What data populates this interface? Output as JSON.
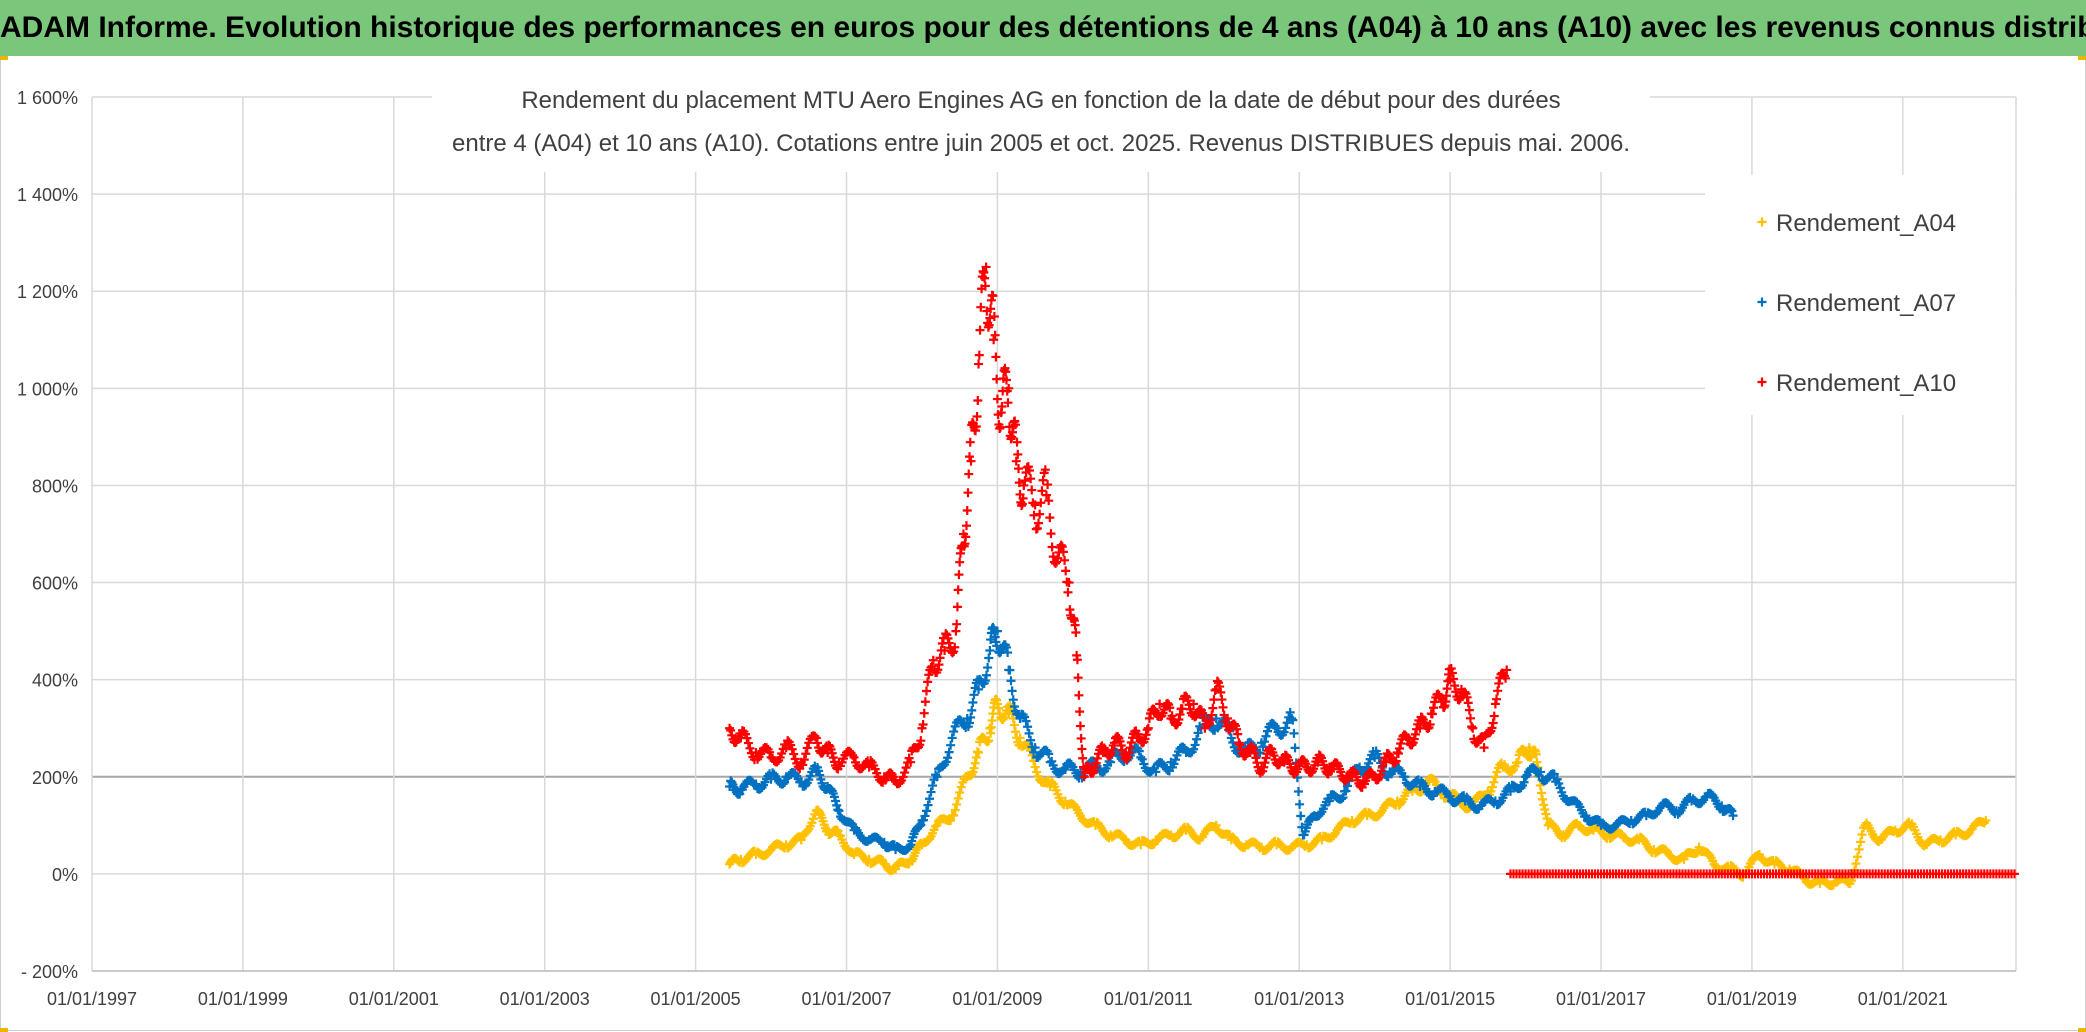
{
  "banner": {
    "title": "ADAM Informe. Evolution historique des performances en euros pour des détentions de 4 ans (A04) à 10 ans (A10) avec les revenus connus distribués"
  },
  "chart_data": {
    "type": "scatter",
    "title_line1": "Rendement du placement MTU Aero Engines AG en fonction de la date de début pour des durées",
    "title_line2": "entre 4 (A04) et 10 ans (A10). Cotations entre juin 2005 et oct. 2025. Revenus DISTRIBUES depuis mai. 2006.",
    "x_range": [
      1997.0,
      2022.5
    ],
    "ylim": [
      -200,
      1600
    ],
    "y_ticks": [
      {
        "value": -200,
        "label": "- 200%"
      },
      {
        "value": 0,
        "label": "0%"
      },
      {
        "value": 200,
        "label": "200%"
      },
      {
        "value": 400,
        "label": "400%"
      },
      {
        "value": 600,
        "label": "600%"
      },
      {
        "value": 800,
        "label": "800%"
      },
      {
        "value": 1000,
        "label": "1 000%"
      },
      {
        "value": 1200,
        "label": "1 200%"
      },
      {
        "value": 1400,
        "label": "1 400%"
      },
      {
        "value": 1600,
        "label": "1 600%"
      }
    ],
    "x_ticks": [
      {
        "value": 1997,
        "label": "01/01/1997"
      },
      {
        "value": 1999,
        "label": "01/01/1999"
      },
      {
        "value": 2001,
        "label": "01/01/2001"
      },
      {
        "value": 2003,
        "label": "01/01/2003"
      },
      {
        "value": 2005,
        "label": "01/01/2005"
      },
      {
        "value": 2007,
        "label": "01/01/2007"
      },
      {
        "value": 2009,
        "label": "01/01/2009"
      },
      {
        "value": 2011,
        "label": "01/01/2011"
      },
      {
        "value": 2013,
        "label": "01/01/2013"
      },
      {
        "value": 2015,
        "label": "01/01/2015"
      },
      {
        "value": 2017,
        "label": "01/01/2017"
      },
      {
        "value": 2019,
        "label": "01/01/2019"
      },
      {
        "value": 2021,
        "label": "01/01/2021"
      }
    ],
    "legend_position": "top-right",
    "series": [
      {
        "name": "Rendement_A04",
        "color": "#ffc000",
        "x": [
          2005.45,
          2005.6,
          2005.8,
          2006.0,
          2006.2,
          2006.4,
          2006.6,
          2006.75,
          2006.9,
          2007.1,
          2007.3,
          2007.5,
          2007.65,
          2007.85,
          2008.0,
          2008.2,
          2008.4,
          2008.6,
          2008.75,
          2008.9,
          2009.0,
          2009.15,
          2009.3,
          2009.5,
          2009.7,
          2009.9,
          2010.1,
          2010.3,
          2010.5,
          2010.7,
          2010.9,
          2011.1,
          2011.3,
          2011.5,
          2011.7,
          2011.9,
          2012.1,
          2012.3,
          2012.5,
          2012.7,
          2012.9,
          2013.1,
          2013.3,
          2013.5,
          2013.7,
          2013.9,
          2014.1,
          2014.3,
          2014.5,
          2014.7,
          2014.9,
          2015.1,
          2015.3,
          2015.5,
          2015.7,
          2015.9,
          2016.05,
          2016.15,
          2016.3,
          2016.5,
          2016.7,
          2016.9,
          2017.1,
          2017.3,
          2017.5,
          2017.7,
          2017.9,
          2018.1,
          2018.3,
          2018.5,
          2018.7,
          2018.9,
          2019.1,
          2019.3,
          2019.5,
          2019.7,
          2019.9,
          2020.1,
          2020.3,
          2020.5,
          2020.7,
          2020.9,
          2021.1,
          2021.3,
          2021.5,
          2021.7,
          2021.9,
          2022.1
        ],
        "y": [
          20,
          30,
          40,
          50,
          60,
          70,
          130,
          90,
          80,
          40,
          30,
          20,
          10,
          30,
          60,
          100,
          120,
          200,
          250,
          300,
          350,
          330,
          280,
          220,
          180,
          150,
          120,
          100,
          80,
          70,
          60,
          70,
          80,
          90,
          75,
          100,
          70,
          60,
          55,
          60,
          55,
          60,
          70,
          90,
          110,
          120,
          130,
          150,
          170,
          190,
          170,
          150,
          140,
          170,
          220,
          230,
          260,
          230,
          100,
          80,
          100,
          90,
          80,
          75,
          70,
          50,
          40,
          30,
          55,
          20,
          10,
          0,
          40,
          20,
          10,
          -10,
          -20,
          -15,
          -20,
          100,
          70,
          90,
          100,
          60,
          70,
          80,
          90,
          110
        ]
      },
      {
        "name": "Rendement_A07",
        "color": "#0070c0",
        "x": [
          2005.45,
          2005.6,
          2005.8,
          2006.0,
          2006.2,
          2006.4,
          2006.6,
          2006.75,
          2006.9,
          2007.1,
          2007.3,
          2007.5,
          2007.65,
          2007.85,
          2008.0,
          2008.2,
          2008.4,
          2008.6,
          2008.75,
          2008.9,
          2009.0,
          2009.15,
          2009.3,
          2009.5,
          2009.7,
          2009.9,
          2010.1,
          2010.3,
          2010.5,
          2010.7,
          2010.9,
          2011.1,
          2011.3,
          2011.5,
          2011.7,
          2011.9,
          2012.1,
          2012.3,
          2012.5,
          2012.7,
          2012.9,
          2013.05,
          2013.2,
          2013.4,
          2013.6,
          2013.8,
          2014.0,
          2014.2,
          2014.4,
          2014.6,
          2014.8,
          2015.0,
          2015.2,
          2015.4,
          2015.6,
          2015.8,
          2016.0,
          2016.2,
          2016.4,
          2016.6,
          2016.8,
          2017.0,
          2017.2,
          2017.4,
          2017.6,
          2017.8,
          2018.0,
          2018.2,
          2018.4,
          2018.6,
          2018.75
        ],
        "y": [
          180,
          175,
          185,
          195,
          200,
          190,
          210,
          180,
          130,
          90,
          70,
          65,
          50,
          60,
          110,
          200,
          280,
          320,
          380,
          460,
          500,
          420,
          320,
          260,
          230,
          215,
          210,
          220,
          230,
          250,
          240,
          210,
          230,
          250,
          300,
          320,
          280,
          250,
          270,
          300,
          320,
          80,
          120,
          150,
          170,
          220,
          240,
          210,
          200,
          180,
          170,
          160,
          150,
          140,
          150,
          170,
          200,
          210,
          190,
          150,
          120,
          100,
          100,
          110,
          120,
          140,
          130,
          150,
          160,
          140,
          120
        ]
      },
      {
        "name": "Rendement_A10",
        "color": "#ff0000",
        "x": [
          2005.45,
          2005.6,
          2005.8,
          2006.0,
          2006.2,
          2006.4,
          2006.6,
          2006.75,
          2006.9,
          2007.1,
          2007.3,
          2007.5,
          2007.65,
          2007.85,
          2008.0,
          2008.15,
          2008.3,
          2008.45,
          2008.55,
          2008.65,
          2008.75,
          2008.85,
          2008.95,
          2009.05,
          2009.15,
          2009.25,
          2009.35,
          2009.5,
          2009.65,
          2009.8,
          2009.95,
          2010.05,
          2010.15,
          2010.25,
          2010.4,
          2010.55,
          2010.7,
          2010.85,
          2011.0,
          2011.15,
          2011.3,
          2011.45,
          2011.6,
          2011.75,
          2011.9,
          2012.05,
          2012.2,
          2012.35,
          2012.5,
          2012.65,
          2012.8,
          2012.95,
          2013.1,
          2013.25,
          2013.4,
          2013.55,
          2013.7,
          2013.85,
          2014.0,
          2014.15,
          2014.3,
          2014.45,
          2014.6,
          2014.75,
          2014.9,
          2015.0,
          2015.15,
          2015.3,
          2015.45,
          2015.6,
          2015.75
        ],
        "y": [
          300,
          280,
          250,
          240,
          260,
          230,
          280,
          250,
          230,
          240,
          220,
          200,
          190,
          230,
          300,
          440,
          460,
          500,
          700,
          850,
          1050,
          1250,
          1100,
          950,
          1000,
          850,
          800,
          760,
          780,
          650,
          600,
          450,
          200,
          220,
          250,
          270,
          250,
          280,
          300,
          350,
          320,
          340,
          350,
          300,
          380,
          320,
          270,
          250,
          220,
          250,
          230,
          220,
          220,
          230,
          220,
          210,
          200,
          190,
          200,
          230,
          250,
          280,
          300,
          330,
          360,
          400,
          380,
          300,
          260,
          350,
          420
        ]
      }
    ],
    "zero_line_series": {
      "name": "Rendement_A10",
      "x_start": 2015.8,
      "x_end": 2022.5,
      "value": 0
    }
  }
}
